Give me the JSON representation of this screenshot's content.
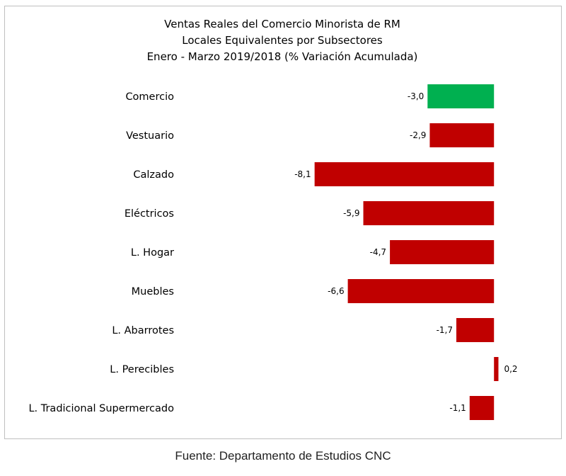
{
  "chart_data": {
    "type": "bar",
    "orientation": "horizontal",
    "title": [
      "Ventas Reales del Comercio Minorista de RM",
      "Locales Equivalentes por Subsectores",
      "Enero - Marzo 2019/2018 (% Variación Acumulada)"
    ],
    "categories": [
      "Comercio",
      "Vestuario",
      "Calzado",
      "Eléctricos",
      "L. Hogar",
      "Muebles",
      "L. Abarrotes",
      "L. Perecibles",
      "L. Tradicional Supermercado"
    ],
    "values": [
      -3.0,
      -2.9,
      -8.1,
      -5.9,
      -4.7,
      -6.6,
      -1.7,
      0.2,
      -1.1
    ],
    "value_labels": [
      "-3,0",
      "-2,9",
      "-8,1",
      "-5,9",
      "-4,7",
      "-6,6",
      "-1,7",
      "0,2",
      "-1,1"
    ],
    "colors": [
      "#00b050",
      "#c00000",
      "#c00000",
      "#c00000",
      "#c00000",
      "#c00000",
      "#c00000",
      "#c00000",
      "#c00000"
    ],
    "xlim": [
      -8.6,
      0.6
    ],
    "grid": false,
    "legend": "none"
  },
  "footer": {
    "source": "Fuente: Departamento de Estudios CNC"
  }
}
